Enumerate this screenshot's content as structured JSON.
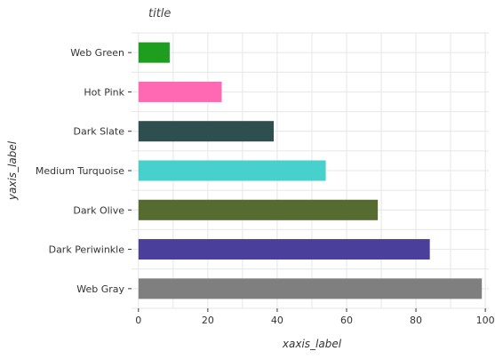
{
  "chart_data": {
    "type": "bar",
    "orientation": "horizontal",
    "title": "title",
    "xlabel": "xaxis_label",
    "ylabel": "yaxis_label",
    "categories": [
      "Web Gray",
      "Dark Periwinkle",
      "Dark Olive",
      "Medium Turquoise",
      "Dark Slate",
      "Hot Pink",
      "Web Green"
    ],
    "values": [
      99,
      84,
      69,
      54,
      39,
      24,
      9
    ],
    "colors": [
      "#7f7f7f",
      "#4a3f9b",
      "#556b2f",
      "#48d1cc",
      "#2f4f4f",
      "#ff69b4",
      "#1e9e1e"
    ],
    "xlim": [
      -2,
      101
    ],
    "xticks": [
      0,
      20,
      40,
      60,
      80,
      100
    ],
    "xtick_labels": [
      "0",
      "20",
      "40",
      "60",
      "80",
      "100"
    ],
    "grid": true
  }
}
